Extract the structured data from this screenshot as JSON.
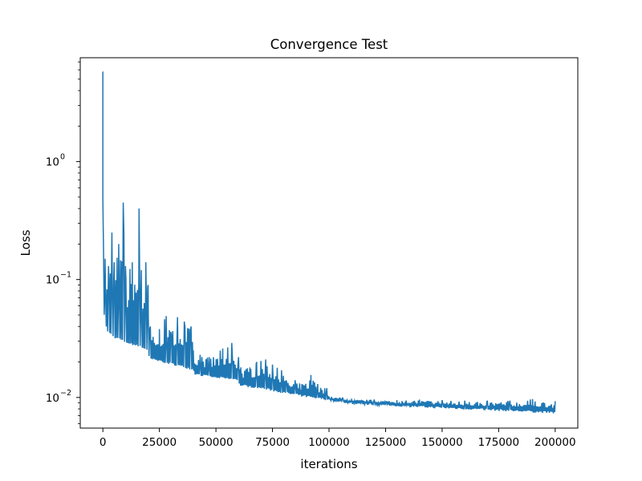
{
  "chart_data": {
    "type": "line",
    "title": "Convergence Test",
    "xlabel": "iterations",
    "ylabel": "Loss",
    "xlim": [
      -10000,
      210000
    ],
    "ylim": [
      0.0055,
      7.6
    ],
    "yscale": "log",
    "grid": false,
    "x_ticks": [
      0,
      25000,
      50000,
      75000,
      100000,
      125000,
      150000,
      175000,
      200000
    ],
    "x_tick_labels": [
      "0",
      "25000",
      "50000",
      "75000",
      "100000",
      "125000",
      "150000",
      "175000",
      "200000"
    ],
    "y_ticks": [
      0.01,
      0.1,
      1
    ],
    "y_tick_labels": [
      {
        "base": "10",
        "exp": "−2"
      },
      {
        "base": "10",
        "exp": "−1"
      },
      {
        "base": "10",
        "exp": "0"
      }
    ],
    "series": [
      {
        "color": "#1f77b4",
        "x": [
          0,
          200000
        ],
        "upper": [
          [
            0,
            5.8
          ],
          [
            300,
            0.17
          ],
          [
            1000,
            0.15
          ],
          [
            2500,
            0.13
          ],
          [
            4000,
            0.25
          ],
          [
            5000,
            0.14
          ],
          [
            7000,
            0.2
          ],
          [
            9000,
            0.45
          ],
          [
            10000,
            0.13
          ],
          [
            13000,
            0.14
          ],
          [
            16000,
            0.4
          ],
          [
            17000,
            0.12
          ],
          [
            19000,
            0.14
          ],
          [
            20000,
            0.09
          ],
          [
            21000,
            0.04
          ],
          [
            25000,
            0.038
          ],
          [
            28000,
            0.049
          ],
          [
            30000,
            0.036
          ],
          [
            33000,
            0.048
          ],
          [
            36000,
            0.044
          ],
          [
            39000,
            0.04
          ],
          [
            40000,
            0.025
          ],
          [
            43000,
            0.023
          ],
          [
            47000,
            0.022
          ],
          [
            53000,
            0.026
          ],
          [
            57000,
            0.029
          ],
          [
            60000,
            0.022
          ],
          [
            61000,
            0.018
          ],
          [
            65000,
            0.018
          ],
          [
            68000,
            0.02
          ],
          [
            72000,
            0.021
          ],
          [
            75000,
            0.019
          ],
          [
            79000,
            0.017
          ],
          [
            81000,
            0.014
          ],
          [
            85000,
            0.014
          ],
          [
            88000,
            0.013
          ],
          [
            92000,
            0.0155
          ],
          [
            95000,
            0.013
          ],
          [
            99000,
            0.012
          ],
          [
            100000,
            0.0102
          ],
          [
            106000,
            0.01
          ],
          [
            110000,
            0.0096
          ],
          [
            120000,
            0.0096
          ],
          [
            130000,
            0.0095
          ],
          [
            140000,
            0.0096
          ],
          [
            150000,
            0.0095
          ],
          [
            160000,
            0.0094
          ],
          [
            170000,
            0.0094
          ],
          [
            180000,
            0.0094
          ],
          [
            190000,
            0.0097
          ],
          [
            200000,
            0.0093
          ]
        ],
        "lower": [
          [
            0,
            0.06
          ],
          [
            1000,
            0.042
          ],
          [
            2000,
            0.036
          ],
          [
            5000,
            0.032
          ],
          [
            10000,
            0.029
          ],
          [
            15000,
            0.027
          ],
          [
            20000,
            0.025
          ],
          [
            20500,
            0.021
          ],
          [
            25000,
            0.02
          ],
          [
            30000,
            0.019
          ],
          [
            35000,
            0.018
          ],
          [
            40000,
            0.017
          ],
          [
            40500,
            0.0155
          ],
          [
            45000,
            0.015
          ],
          [
            50000,
            0.0145
          ],
          [
            55000,
            0.0142
          ],
          [
            60000,
            0.0138
          ],
          [
            60500,
            0.0125
          ],
          [
            70000,
            0.0118
          ],
          [
            80000,
            0.0108
          ],
          [
            90000,
            0.01
          ],
          [
            100000,
            0.0094
          ],
          [
            110000,
            0.0088
          ],
          [
            125000,
            0.0085
          ],
          [
            140000,
            0.0082
          ],
          [
            160000,
            0.0079
          ],
          [
            180000,
            0.0076
          ],
          [
            200000,
            0.0073
          ]
        ]
      }
    ]
  }
}
